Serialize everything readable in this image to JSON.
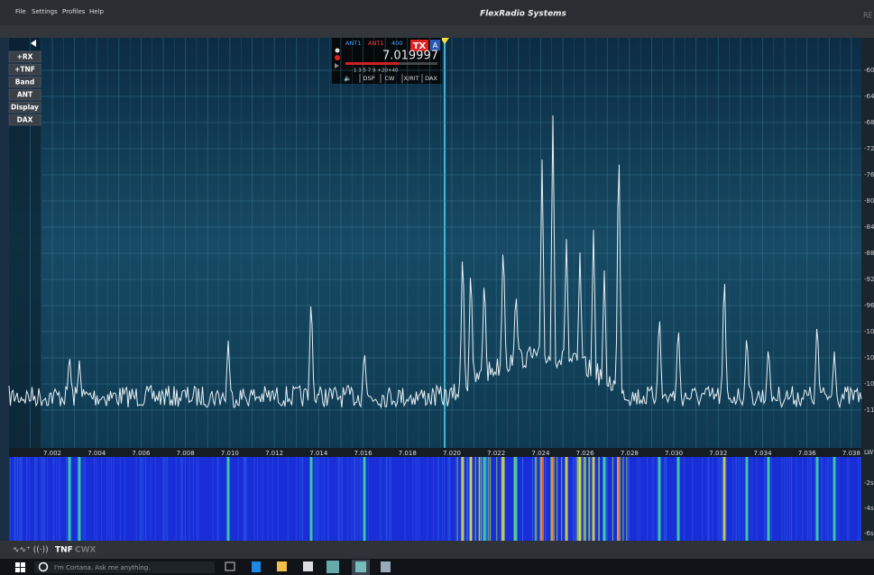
{
  "menu": [
    "File",
    "Settings",
    "Profiles",
    "Help"
  ],
  "title": "FlexRadio Systems",
  "rec": "RE",
  "side_buttons": [
    "+RX",
    "+TNF",
    "Band",
    "ANT",
    "Display",
    "DAX"
  ],
  "frequency_axis": [
    "7.002",
    "7.004",
    "7.006",
    "7.008",
    "7.010",
    "7.012",
    "7.014",
    "7.016",
    "7.018",
    "7.020",
    "7.022",
    "7.024",
    "7.026",
    "7.028",
    "7.030",
    "7.032",
    "7.034",
    "7.036",
    "7.038"
  ],
  "frequency_axis_unit": "LW",
  "level_axis": [
    "-60",
    "-64",
    "-68",
    "-72",
    "-76",
    "-80",
    "-84",
    "-88",
    "-92",
    "-96",
    "-10",
    "-10",
    "-10",
    "-11"
  ],
  "waterfall_axis": [
    "-2s",
    "-4s",
    "-6s"
  ],
  "slice": {
    "rx_ant": "ANT1",
    "tx_ant": "ANT1",
    "filter": "400",
    "tx": "TX",
    "letter": "A",
    "frequency": "7.019997",
    "scale": "1   3   5   7   9  +20+40",
    "tabs": [
      "DSP",
      "CW",
      "X/RIT",
      "DAX"
    ]
  },
  "bottom_bar": {
    "tnf": "TNF",
    "cwx": "CWX"
  },
  "taskbar": {
    "search": "I'm Cortana. Ask me anything."
  }
}
